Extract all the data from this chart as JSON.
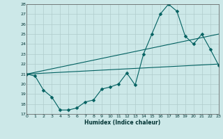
{
  "title": "",
  "xlabel": "Humidex (Indice chaleur)",
  "ylabel": "",
  "bg_color": "#cce8e8",
  "line_color": "#006060",
  "grid_color": "#b8d8d8",
  "ylim": [
    17,
    28
  ],
  "xlim": [
    0,
    23
  ],
  "yticks": [
    17,
    18,
    19,
    20,
    21,
    22,
    23,
    24,
    25,
    26,
    27,
    28
  ],
  "xticks": [
    0,
    1,
    2,
    3,
    4,
    5,
    6,
    7,
    8,
    9,
    10,
    11,
    12,
    13,
    14,
    15,
    16,
    17,
    18,
    19,
    20,
    21,
    22,
    23
  ],
  "line1_x": [
    0,
    1,
    2,
    3,
    4,
    5,
    6,
    7,
    8,
    9,
    10,
    11,
    12,
    13,
    14,
    15,
    16,
    17,
    18,
    19,
    20,
    21,
    22,
    23
  ],
  "line1_y": [
    21.0,
    20.8,
    19.4,
    18.7,
    17.4,
    17.4,
    17.6,
    18.2,
    18.4,
    19.5,
    19.7,
    20.0,
    21.1,
    19.9,
    23.0,
    25.0,
    27.0,
    28.0,
    27.3,
    24.8,
    24.0,
    25.0,
    23.5,
    21.9
  ],
  "line2_x": [
    0,
    23
  ],
  "line2_y": [
    21.0,
    22.0
  ],
  "line3_x": [
    0,
    23
  ],
  "line3_y": [
    21.0,
    25.0
  ]
}
